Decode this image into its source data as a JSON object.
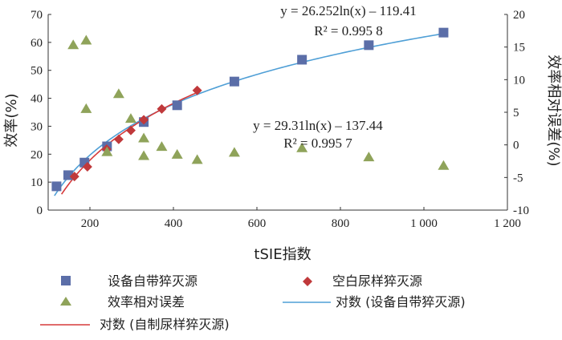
{
  "chart_data": {
    "type": "scatter",
    "xlabel": "tSIE指数",
    "ylabel_left": "效率(%)",
    "ylabel_right": "效率相对误差(%)",
    "xlim": [
      100,
      1200
    ],
    "ylim_left": [
      0,
      70
    ],
    "ylim_right": [
      -10,
      20
    ],
    "x_ticks": [
      "200",
      "400",
      "600",
      "800",
      "1 000",
      "1 200"
    ],
    "y_ticks_left": [
      "0",
      "10",
      "20",
      "30",
      "40",
      "50",
      "60",
      "70"
    ],
    "y_ticks_right": [
      "-10",
      "-5",
      "0",
      "5",
      "10",
      "15",
      "20"
    ],
    "series": [
      {
        "name": "设备自带猝灭源",
        "marker": "square",
        "color": "#5b6ea8",
        "axis": "left",
        "points": [
          [
            120,
            8.5
          ],
          [
            148,
            12.5
          ],
          [
            187,
            17
          ],
          [
            241,
            22.8
          ],
          [
            329,
            31.5
          ],
          [
            409,
            37.5
          ],
          [
            546,
            46
          ],
          [
            708,
            53.8
          ],
          [
            868,
            59
          ],
          [
            1047,
            63.5
          ]
        ]
      },
      {
        "name": "空白尿样猝灭源",
        "marker": "diamond",
        "color": "#c0393b",
        "axis": "left",
        "points": [
          [
            163,
            12
          ],
          [
            194,
            15.5
          ],
          [
            240,
            21.8
          ],
          [
            269,
            25.3
          ],
          [
            298,
            28.5
          ],
          [
            329,
            32.3
          ],
          [
            372,
            36.2
          ],
          [
            457,
            42.8
          ]
        ]
      },
      {
        "name": "效率相对误差",
        "marker": "triangle",
        "color": "#8fa35a",
        "axis": "right",
        "points": [
          [
            160,
            15.3
          ],
          [
            191,
            16
          ],
          [
            191,
            5.5
          ],
          [
            241,
            -1.1
          ],
          [
            269,
            7.8
          ],
          [
            298,
            4
          ],
          [
            329,
            -1.7
          ],
          [
            329,
            1
          ],
          [
            372,
            -0.3
          ],
          [
            409,
            -1.5
          ],
          [
            457,
            -2.3
          ],
          [
            546,
            -1.2
          ],
          [
            708,
            -0.5
          ],
          [
            868,
            -1.9
          ],
          [
            1047,
            -3.2
          ]
        ]
      }
    ],
    "fits": [
      {
        "name": "对数 (设备自带猝灭源)",
        "color": "#4f9fd6",
        "a": 26.252,
        "b": -119.41,
        "x_range": [
          115,
          1047
        ],
        "equation": "y = 26.252ln(x) – 119.41",
        "r2_label": "R² = 0.995 8"
      },
      {
        "name": "对数 (自制尿样猝灭源)",
        "color": "#d63a3a",
        "a": 29.31,
        "b": -137.44,
        "x_range": [
          132,
          457
        ],
        "equation": "y = 29.31ln(x) – 137.44",
        "r2_label": "R² = 0.995 7"
      }
    ],
    "legend": {
      "placement": "bottom",
      "items": [
        "设备自带猝灭源",
        "空白尿样猝灭源",
        "效率相对误差",
        "对数 (设备自带猝灭源)",
        "对数 (自制尿样猝灭源)"
      ]
    }
  }
}
